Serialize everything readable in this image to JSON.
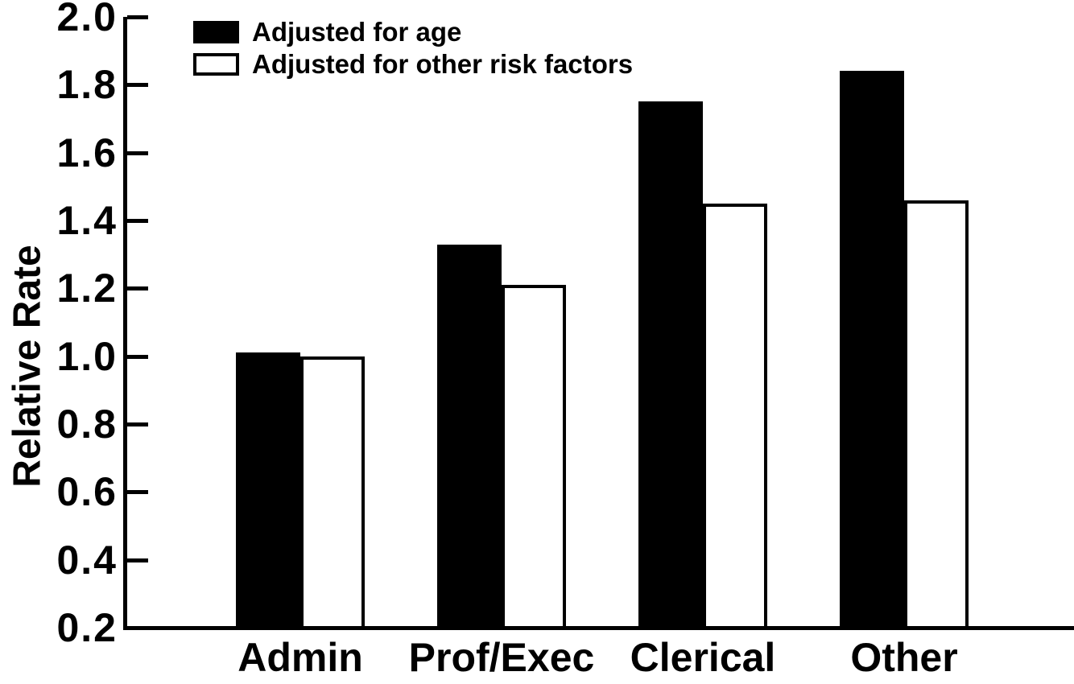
{
  "figure": {
    "background": "#ffffff",
    "axis_color": "#000000"
  },
  "chart_data": {
    "type": "bar",
    "title": "",
    "xlabel": "",
    "ylabel": "Relative Rate",
    "categories": [
      "Admin",
      "Prof/Exec",
      "Clerical",
      "Other"
    ],
    "series": [
      {
        "name": "Adjusted for age",
        "fill": "#000000",
        "stroke": "#000000",
        "values": [
          1.01,
          1.33,
          1.75,
          1.84
        ]
      },
      {
        "name": "Adjusted for other risk factors",
        "fill": "#ffffff",
        "stroke": "#000000",
        "values": [
          1.0,
          1.21,
          1.45,
          1.46
        ]
      }
    ],
    "y_axis": {
      "min": 0.2,
      "max": 2.0,
      "tick_step": 0.2,
      "ticks": [
        2.0,
        1.8,
        1.6,
        1.4,
        1.2,
        1.0,
        0.8,
        0.6,
        0.4,
        0.2
      ],
      "tick_labels": [
        "2.0",
        "1.8",
        "1.6",
        "1.4",
        "1.2",
        "1.0",
        "0.8",
        "0.6",
        "0.4",
        "0.2"
      ]
    },
    "legend_position": "top-left",
    "grid": false
  }
}
